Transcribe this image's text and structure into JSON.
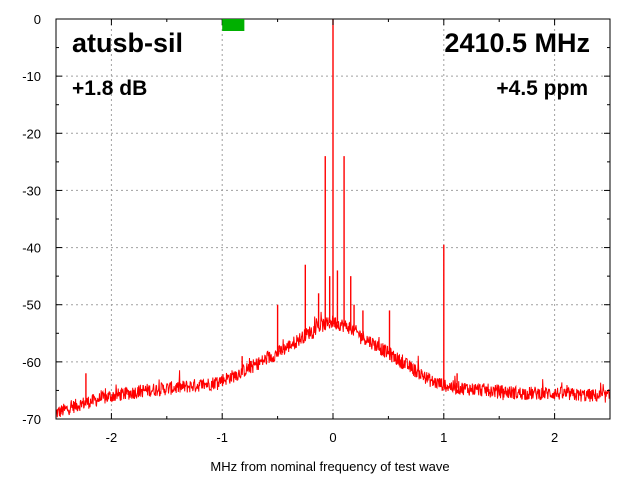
{
  "chart_data": {
    "type": "line",
    "title": "",
    "xlabel": "MHz from nominal frequency of test wave",
    "ylabel": "",
    "xlim": [
      -2.5,
      2.5
    ],
    "ylim": [
      -70,
      0
    ],
    "x_ticks": [
      -2,
      -1,
      0,
      1,
      2
    ],
    "y_ticks": [
      0,
      -10,
      -20,
      -30,
      -40,
      -50,
      -60,
      -70
    ],
    "grid": true,
    "legend": "none",
    "annotations": {
      "top_left": "atusb-sil",
      "top_right": "2410.5 MHz",
      "second_left": "+1.8 dB",
      "second_right": "+4.5 ppm"
    },
    "marker": {
      "x_start": -1.0,
      "x_end": -0.8,
      "color": "#00b000"
    },
    "series": [
      {
        "color": "#ff0000",
        "envelope": [
          [
            -2.5,
            -69
          ],
          [
            -2.3,
            -67.5
          ],
          [
            -2.0,
            -66
          ],
          [
            -1.7,
            -65
          ],
          [
            -1.4,
            -64.5
          ],
          [
            -1.1,
            -63.8
          ],
          [
            -0.9,
            -62.5
          ],
          [
            -0.7,
            -60.5
          ],
          [
            -0.5,
            -58.5
          ],
          [
            -0.3,
            -56
          ],
          [
            -0.15,
            -54
          ],
          [
            0.0,
            -53
          ],
          [
            0.15,
            -54
          ],
          [
            0.3,
            -56
          ],
          [
            0.5,
            -58.5
          ],
          [
            0.7,
            -61
          ],
          [
            0.9,
            -63.5
          ],
          [
            1.1,
            -64.5
          ],
          [
            1.4,
            -65
          ],
          [
            1.7,
            -65.5
          ],
          [
            2.0,
            -65.5
          ],
          [
            2.2,
            -65.8
          ],
          [
            2.5,
            -66
          ]
        ],
        "spurs": [
          [
            -2.23,
            -62
          ],
          [
            -0.82,
            -59
          ],
          [
            -0.48,
            -58
          ],
          [
            -0.5,
            -50
          ],
          [
            -0.25,
            -43
          ],
          [
            -0.13,
            -48
          ],
          [
            -0.07,
            -24
          ],
          [
            -0.03,
            -45
          ],
          [
            0.0,
            0
          ],
          [
            0.04,
            -44
          ],
          [
            0.1,
            -24
          ],
          [
            0.16,
            -45
          ],
          [
            0.19,
            -50
          ],
          [
            0.27,
            -51
          ],
          [
            0.51,
            -51
          ],
          [
            1.0,
            -39.5
          ],
          [
            1.12,
            -62
          ]
        ]
      }
    ]
  }
}
